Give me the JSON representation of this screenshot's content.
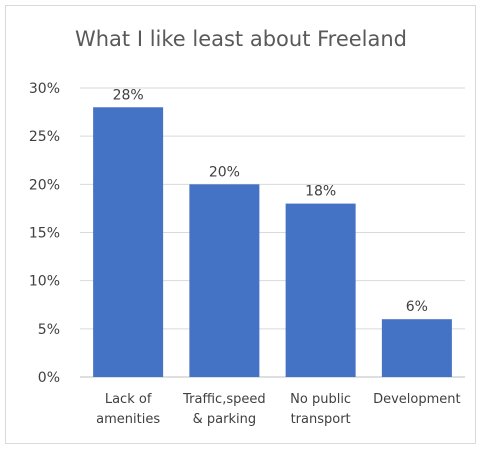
{
  "chart_data": {
    "type": "bar",
    "title": "What I like least about Freeland",
    "categories": [
      [
        "Lack of",
        "amenities"
      ],
      [
        "Traffic,speed",
        "& parking"
      ],
      [
        "No public",
        "transport"
      ],
      [
        "Development"
      ]
    ],
    "values": [
      28,
      20,
      18,
      6
    ],
    "data_labels": [
      "28%",
      "20%",
      "18%",
      "6%"
    ],
    "ylim": [
      0,
      30
    ],
    "yticks": [
      0,
      5,
      10,
      15,
      20,
      25,
      30
    ],
    "ytick_labels": [
      "0%",
      "5%",
      "10%",
      "15%",
      "20%",
      "25%",
      "30%"
    ],
    "grid": true,
    "bar_color": "#4472c4",
    "grid_color": "#d9d9d9"
  }
}
